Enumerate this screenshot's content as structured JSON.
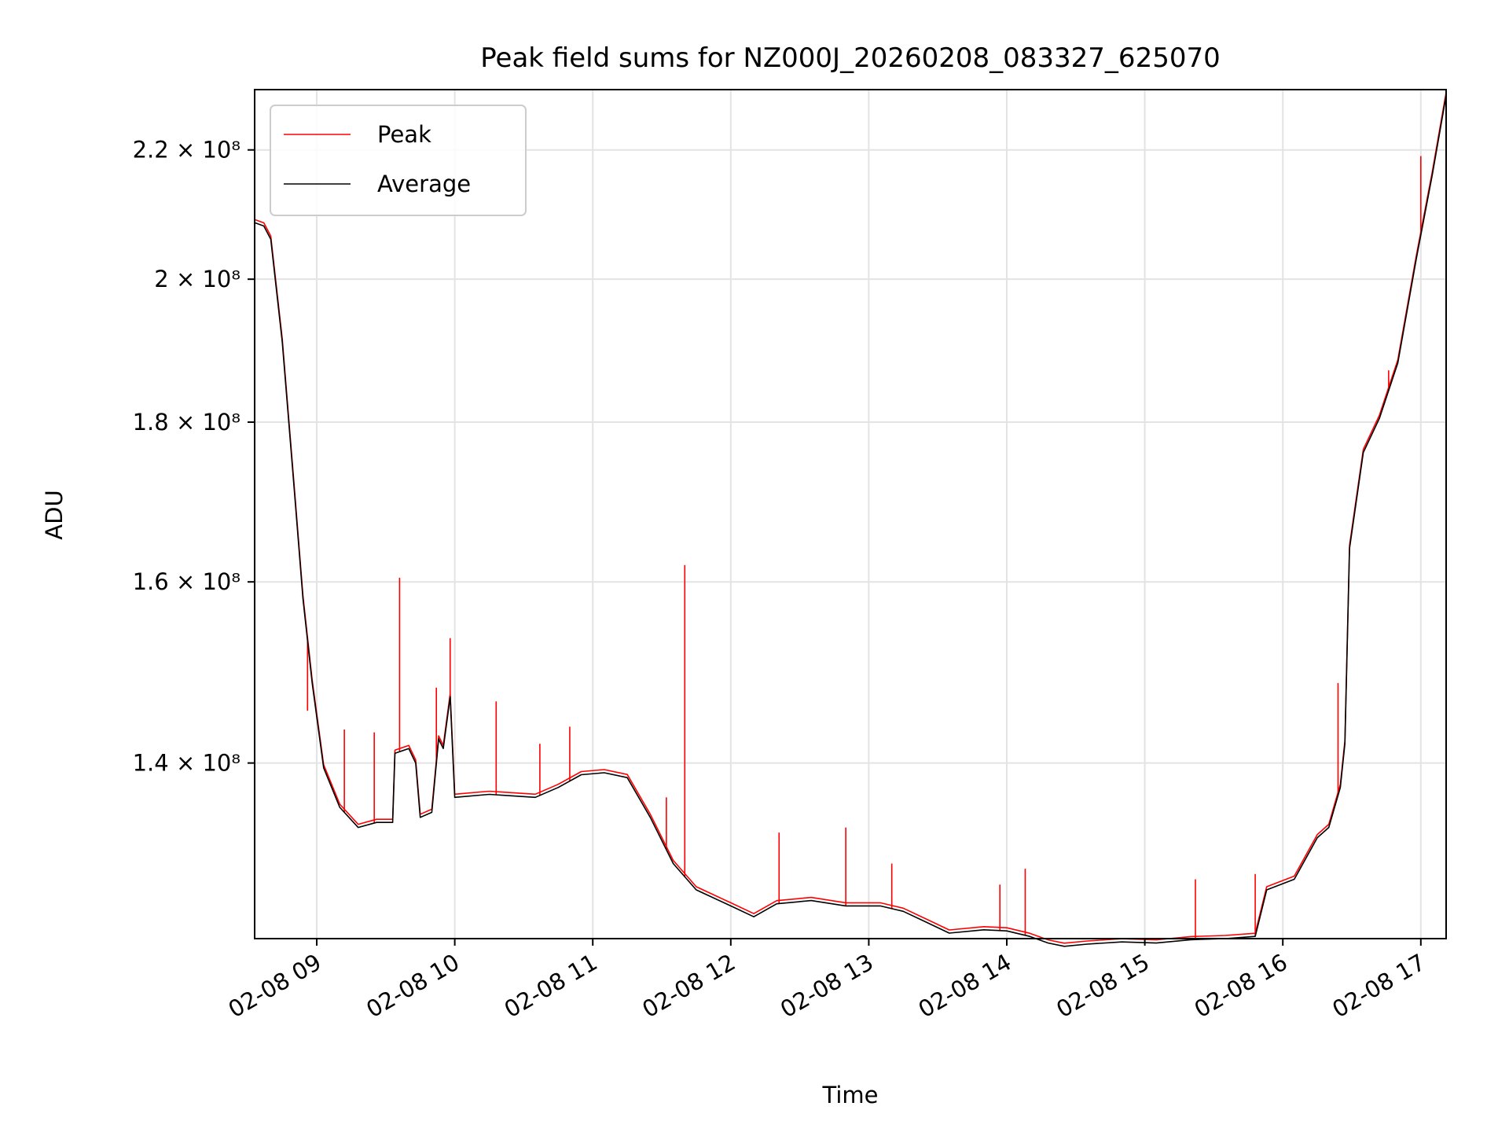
{
  "chart_data": {
    "type": "line",
    "title": "Peak field sums for NZ000J_20260208_083327_625070",
    "xlabel": "Time",
    "ylabel": "ADU",
    "y_scale": "log",
    "ylim": [
      123000000,
      230000000
    ],
    "xlim": [
      "2026-02-08 08:33",
      "2026-02-08 17:11"
    ],
    "grid": true,
    "legend_position": "upper left",
    "x_ticks": [
      "02-08 09",
      "02-08 10",
      "02-08 11",
      "02-08 12",
      "02-08 13",
      "02-08 14",
      "02-08 15",
      "02-08 16",
      "02-08 17"
    ],
    "y_ticks": [
      {
        "value": 140000000,
        "label": "1.4 × 10⁸"
      },
      {
        "value": 160000000,
        "label": "1.6 × 10⁸"
      },
      {
        "value": 180000000,
        "label": "1.8 × 10⁸"
      },
      {
        "value": 200000000,
        "label": "2 × 10⁸"
      },
      {
        "value": 220000000,
        "label": "2.2 × 10⁸"
      }
    ],
    "series": [
      {
        "name": "Peak",
        "color": "#ff0000",
        "spikes": [
          [
            "2026-02-08 08:56",
            145500000
          ],
          [
            "2026-02-08 09:12",
            143500000
          ],
          [
            "2026-02-08 09:25",
            143200000
          ],
          [
            "2026-02-08 09:36",
            160500000
          ],
          [
            "2026-02-08 09:52",
            148000000
          ],
          [
            "2026-02-08 09:58",
            153500000
          ],
          [
            "2026-02-08 10:18",
            146500000
          ],
          [
            "2026-02-08 10:37",
            142000000
          ],
          [
            "2026-02-08 10:50",
            143800000
          ],
          [
            "2026-02-08 11:32",
            136500000
          ],
          [
            "2026-02-08 11:40",
            162000000
          ],
          [
            "2026-02-08 12:21",
            133000000
          ],
          [
            "2026-02-08 12:50",
            133500000
          ],
          [
            "2026-02-08 13:10",
            130000000
          ],
          [
            "2026-02-08 13:57",
            128000000
          ],
          [
            "2026-02-08 14:08",
            129500000
          ],
          [
            "2026-02-08 15:22",
            128500000
          ],
          [
            "2026-02-08 15:48",
            129000000
          ],
          [
            "2026-02-08 16:24",
            148500000
          ],
          [
            "2026-02-08 16:46",
            187000000
          ],
          [
            "2026-02-08 17:00",
            219000000
          ]
        ]
      },
      {
        "name": "Average",
        "color": "#000000",
        "x": [
          "2026-02-08 08:33",
          "2026-02-08 08:37",
          "2026-02-08 08:40",
          "2026-02-08 08:45",
          "2026-02-08 08:50",
          "2026-02-08 08:54",
          "2026-02-08 08:58",
          "2026-02-08 09:03",
          "2026-02-08 09:10",
          "2026-02-08 09:18",
          "2026-02-08 09:26",
          "2026-02-08 09:33",
          "2026-02-08 09:34",
          "2026-02-08 09:40",
          "2026-02-08 09:43",
          "2026-02-08 09:45",
          "2026-02-08 09:50",
          "2026-02-08 09:53",
          "2026-02-08 09:55",
          "2026-02-08 09:58",
          "2026-02-08 10:00",
          "2026-02-08 10:15",
          "2026-02-08 10:35",
          "2026-02-08 10:45",
          "2026-02-08 10:55",
          "2026-02-08 11:05",
          "2026-02-08 11:15",
          "2026-02-08 11:25",
          "2026-02-08 11:35",
          "2026-02-08 11:45",
          "2026-02-08 12:00",
          "2026-02-08 12:10",
          "2026-02-08 12:20",
          "2026-02-08 12:35",
          "2026-02-08 12:50",
          "2026-02-08 13:05",
          "2026-02-08 13:15",
          "2026-02-08 13:25",
          "2026-02-08 13:35",
          "2026-02-08 13:50",
          "2026-02-08 14:00",
          "2026-02-08 14:10",
          "2026-02-08 14:18",
          "2026-02-08 14:25",
          "2026-02-08 14:35",
          "2026-02-08 14:50",
          "2026-02-08 15:05",
          "2026-02-08 15:20",
          "2026-02-08 15:35",
          "2026-02-08 15:48",
          "2026-02-08 15:53",
          "2026-02-08 16:05",
          "2026-02-08 16:15",
          "2026-02-08 16:20",
          "2026-02-08 16:25",
          "2026-02-08 16:27",
          "2026-02-08 16:29",
          "2026-02-08 16:35",
          "2026-02-08 16:42",
          "2026-02-08 16:50",
          "2026-02-08 16:58",
          "2026-02-08 17:05",
          "2026-02-08 17:11"
        ],
        "values": [
          208500000,
          208000000,
          206000000,
          191000000,
          172000000,
          158000000,
          148500000,
          139500000,
          135500000,
          133500000,
          134000000,
          134000000,
          141000000,
          141500000,
          140000000,
          134500000,
          135000000,
          142500000,
          141500000,
          147000000,
          136500000,
          136800000,
          136500000,
          137500000,
          138800000,
          139000000,
          138500000,
          134500000,
          130000000,
          127500000,
          126000000,
          125000000,
          126200000,
          126500000,
          126000000,
          126000000,
          125500000,
          124500000,
          123500000,
          123800000,
          123700000,
          123200000,
          122600000,
          122300000,
          122500000,
          122700000,
          122600000,
          122900000,
          123000000,
          123200000,
          127500000,
          128500000,
          132500000,
          133500000,
          137500000,
          142000000,
          164000000,
          176000000,
          180500000,
          188000000,
          203000000,
          216000000,
          229000000
        ]
      }
    ]
  }
}
